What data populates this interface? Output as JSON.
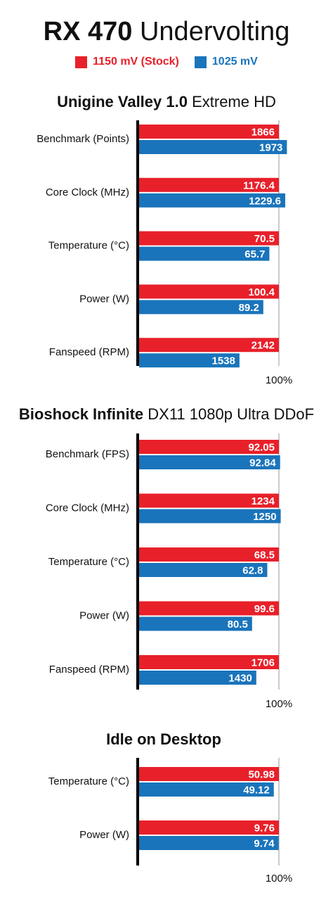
{
  "title_bold": "RX 470",
  "title_rest": "Undervolting",
  "legend": [
    {
      "label": "1150 mV (Stock)",
      "color": "#e8202a"
    },
    {
      "label": "1025 mV",
      "color": "#1a74bb"
    }
  ],
  "chart_data": [
    {
      "type": "bar",
      "title_bold": "Unigine Valley 1.0",
      "title_rest": "Extreme HD",
      "categories": [
        "Benchmark (Points)",
        "Core Clock (MHz)",
        "Temperature (°C)",
        "Power (W)",
        "Fanspeed (RPM)"
      ],
      "series": [
        {
          "name": "1150 mV (Stock)",
          "values": [
            1866,
            1176.4,
            70.5,
            100.4,
            2142
          ],
          "labels": [
            "1866",
            "1176.4",
            "70.5",
            "100.4",
            "2142"
          ]
        },
        {
          "name": "1025 mV",
          "values": [
            1973,
            1229.6,
            65.7,
            89.2,
            1538
          ],
          "labels": [
            "1973",
            "1229.6",
            "65.7",
            "89.2",
            "1538"
          ]
        }
      ],
      "reference_label": "100%"
    },
    {
      "type": "bar",
      "title_bold": "Bioshock Infinite",
      "title_rest": "DX11 1080p Ultra DDoF",
      "categories": [
        "Benchmark (FPS)",
        "Core Clock (MHz)",
        "Temperature (°C)",
        "Power (W)",
        "Fanspeed (RPM)"
      ],
      "series": [
        {
          "name": "1150 mV (Stock)",
          "values": [
            92.05,
            1234,
            68.5,
            99.6,
            1706
          ],
          "labels": [
            "92.05",
            "1234",
            "68.5",
            "99.6",
            "1706"
          ]
        },
        {
          "name": "1025 mV",
          "values": [
            92.84,
            1250,
            62.8,
            80.5,
            1430
          ],
          "labels": [
            "92.84",
            "1250",
            "62.8",
            "80.5",
            "1430"
          ]
        }
      ],
      "reference_label": "100%"
    },
    {
      "type": "bar",
      "title_bold": "Idle on Desktop",
      "title_rest": "",
      "categories": [
        "Temperature (°C)",
        "Power (W)"
      ],
      "series": [
        {
          "name": "1150 mV (Stock)",
          "values": [
            50.98,
            9.76
          ],
          "labels": [
            "50.98",
            "9.76"
          ]
        },
        {
          "name": "1025 mV",
          "values": [
            49.12,
            9.74
          ],
          "labels": [
            "49.12",
            "9.74"
          ]
        }
      ],
      "reference_label": "100%"
    }
  ]
}
